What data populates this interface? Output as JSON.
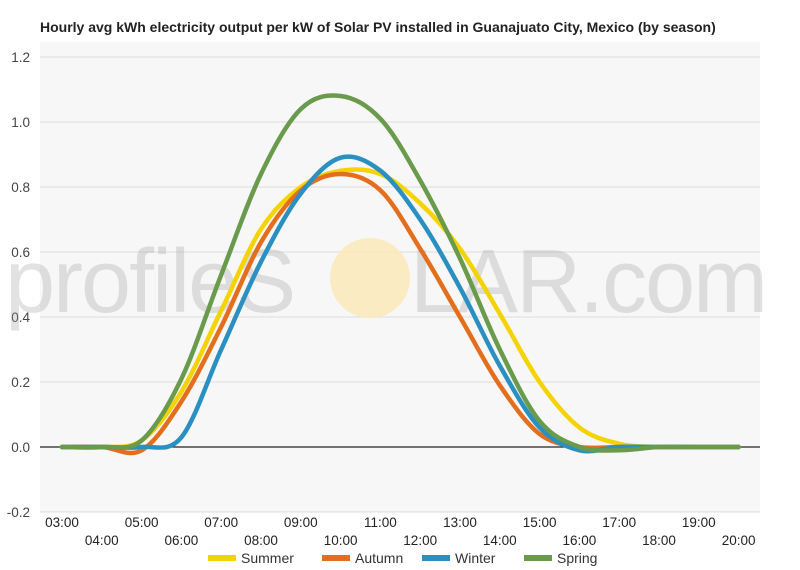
{
  "chart_data": {
    "type": "line",
    "title": "Hourly avg kWh electricity output per kW of Solar PV installed in Guanajuato City, Mexico (by season)",
    "xlabel": "",
    "ylabel": "",
    "x": [
      "03:00",
      "04:00",
      "05:00",
      "06:00",
      "07:00",
      "08:00",
      "09:00",
      "10:00",
      "11:00",
      "12:00",
      "13:00",
      "14:00",
      "15:00",
      "16:00",
      "17:00",
      "18:00",
      "19:00",
      "20:00"
    ],
    "ylim": [
      -0.2,
      1.2
    ],
    "yticks": [
      "-0.2",
      "0.0",
      "0.2",
      "0.4",
      "0.6",
      "0.8",
      "1.0",
      "1.2"
    ],
    "grid": true,
    "legend_position": "bottom",
    "series": [
      {
        "name": "Summer",
        "color": "#F5D300",
        "values": [
          0,
          0,
          0.02,
          0.17,
          0.42,
          0.67,
          0.8,
          0.85,
          0.84,
          0.75,
          0.61,
          0.41,
          0.2,
          0.06,
          0.01,
          0,
          0,
          0
        ]
      },
      {
        "name": "Autumn",
        "color": "#E36F1E",
        "values": [
          0,
          0,
          -0.01,
          0.14,
          0.37,
          0.63,
          0.79,
          0.84,
          0.79,
          0.61,
          0.4,
          0.19,
          0.04,
          0,
          0,
          0,
          0,
          0
        ]
      },
      {
        "name": "Winter",
        "color": "#2A8FC1",
        "values": [
          0,
          0,
          0,
          0.03,
          0.3,
          0.57,
          0.78,
          0.89,
          0.85,
          0.7,
          0.49,
          0.25,
          0.06,
          -0.01,
          0,
          0,
          0,
          0
        ]
      },
      {
        "name": "Spring",
        "color": "#6A9A4B",
        "values": [
          0,
          0,
          0.02,
          0.21,
          0.53,
          0.84,
          1.04,
          1.08,
          1.01,
          0.82,
          0.58,
          0.3,
          0.08,
          0,
          -0.01,
          0,
          0,
          0
        ]
      }
    ]
  },
  "watermark": {
    "text_left": "profileS",
    "text_right": "LAR.com"
  }
}
